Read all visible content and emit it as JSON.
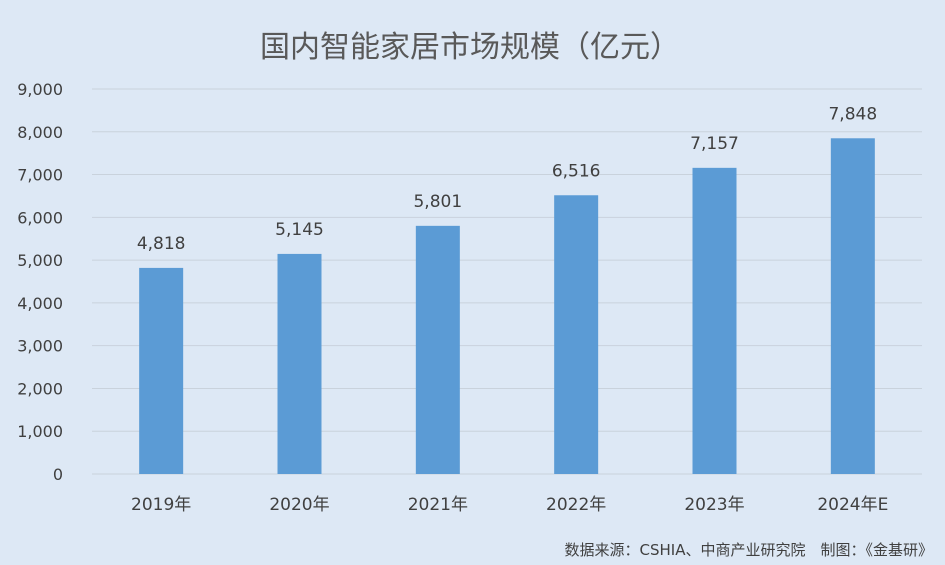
{
  "chart_data": {
    "type": "bar",
    "title": "国内智能家居市场规模（亿元）",
    "categories": [
      "2019年",
      "2020年",
      "2021年",
      "2022年",
      "2023年",
      "2024年E"
    ],
    "values": [
      4818,
      5145,
      5801,
      6516,
      7157,
      7848
    ],
    "value_labels": [
      "4,818",
      "5,145",
      "5,801",
      "6,516",
      "7,157",
      "7,848"
    ],
    "ylim": [
      0,
      9000
    ],
    "yticks": [
      0,
      1000,
      2000,
      3000,
      4000,
      5000,
      6000,
      7000,
      8000,
      9000
    ],
    "ytick_labels": [
      "0",
      "1,000",
      "2,000",
      "3,000",
      "4,000",
      "5,000",
      "6,000",
      "7,000",
      "8,000",
      "9,000"
    ],
    "grid": true,
    "legend": "none",
    "bar_color": "#5b9bd5"
  },
  "source_note": "数据来源：CSHIA、中商产业研究院　制图：《金基研》"
}
